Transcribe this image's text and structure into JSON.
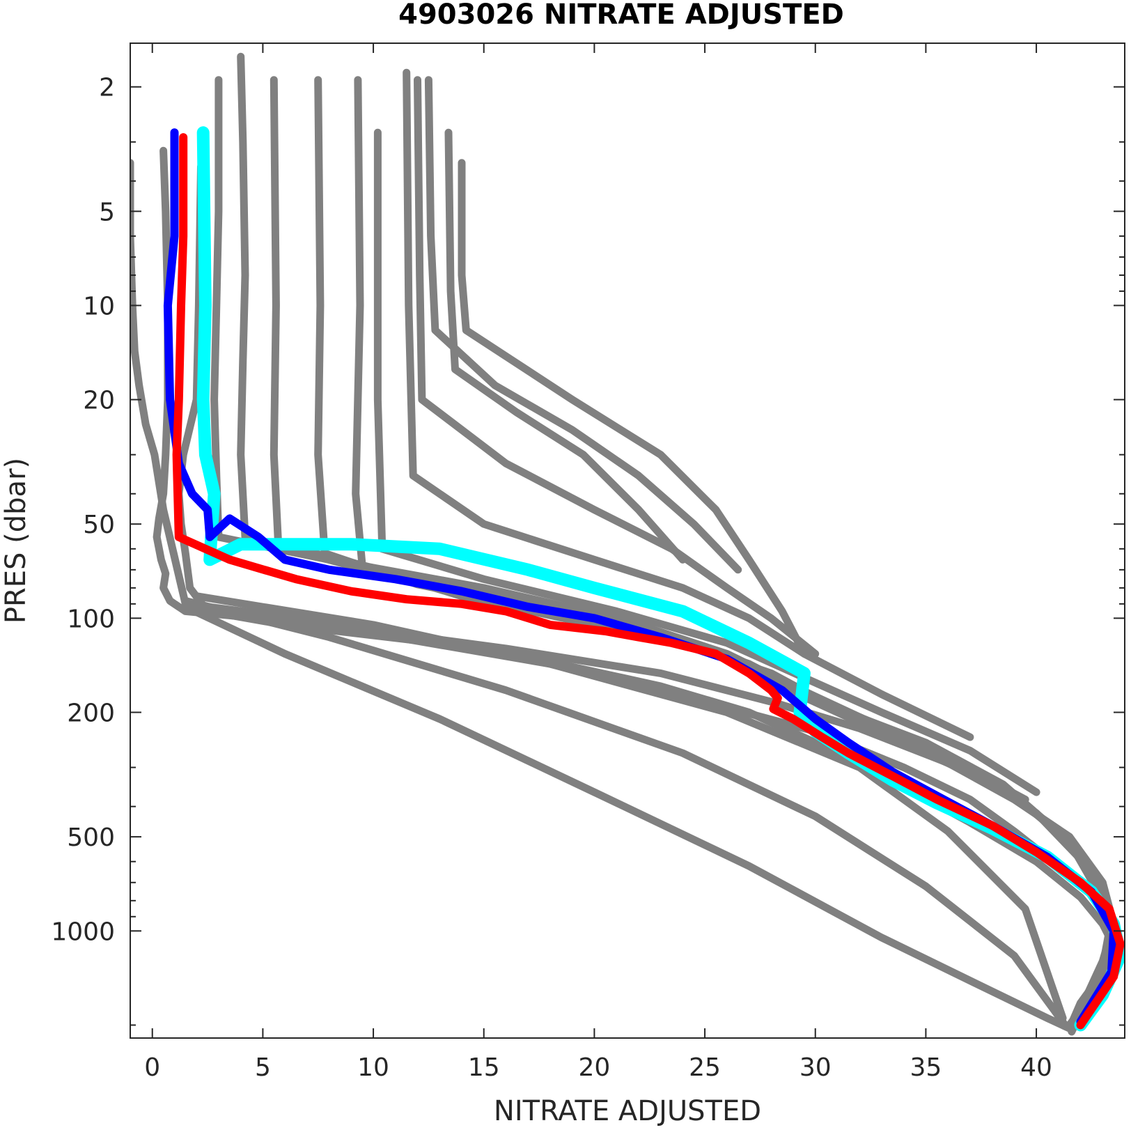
{
  "chart_data": {
    "type": "line",
    "title": "4903026  NITRATE ADJUSTED",
    "xlabel": "NITRATE ADJUSTED",
    "ylabel": "PRES (dbar)",
    "xlim": [
      -1,
      44
    ],
    "ylim": [
      1.45,
      2200
    ],
    "y_scale": "log",
    "y_reversed": true,
    "grid": false,
    "x_ticks": [
      0,
      5,
      10,
      15,
      20,
      25,
      30,
      35,
      40
    ],
    "x_tick_labels": [
      "0",
      "5",
      "10",
      "15",
      "20",
      "25",
      "30",
      "35",
      "40"
    ],
    "y_ticks": [
      2,
      5,
      10,
      20,
      50,
      100,
      200,
      500,
      1000
    ],
    "y_tick_labels": [
      "2",
      "5",
      "10",
      "20",
      "50",
      "100",
      "200",
      "500",
      "1000"
    ],
    "colors": {
      "background": "#ffffff",
      "axes": "#262626",
      "title": "#000000"
    },
    "series": [
      {
        "color": "#808080",
        "role": "all-profiles",
        "profiles": [
          {
            "x": [
              -1,
              -1,
              -0.9,
              -0.8,
              -0.6,
              -0.3,
              0.1,
              0.5,
              1.5,
              6.5,
              11,
              18,
              25,
              30,
              34,
              37,
              39,
              41,
              43,
              43.5,
              43.2,
              42,
              41.5
            ],
            "y": [
              3.5,
              6,
              10,
              14,
              18,
              24,
              30,
              45,
              90,
              100,
              115,
              140,
              185,
              230,
              300,
              380,
              480,
              620,
              800,
              1000,
              1300,
              1700,
              2050
            ]
          },
          {
            "x": [
              0.5,
              0.6,
              0.7,
              0.7,
              0.6,
              0.5,
              0.3,
              0.2,
              0.4,
              0.6,
              0.5,
              0.8,
              1.5,
              8,
              16,
              23,
              28,
              32,
              36,
              39,
              41.5,
              43,
              43.5,
              43,
              42.3,
              41.8
            ],
            "y": [
              3.2,
              5,
              10,
              20,
              30,
              40,
              48,
              55,
              65,
              72,
              80,
              88,
              95,
              105,
              125,
              150,
              185,
              225,
              290,
              380,
              500,
              700,
              950,
              1250,
              1600,
              2000
            ]
          },
          {
            "x": [
              3,
              3,
              2.9,
              2.8,
              2.9,
              3,
              8,
              15,
              21,
              25,
              28,
              31,
              35,
              38.5,
              41,
              42.8,
              43.3,
              43,
              42.2,
              41.6
            ],
            "y": [
              1.9,
              5,
              10,
              20,
              35,
              55,
              65,
              80,
              100,
              125,
              160,
              200,
              270,
              350,
              480,
              700,
              1000,
              1300,
              1700,
              2100
            ]
          },
          {
            "x": [
              4,
              4.1,
              4.2,
              4.1,
              4,
              4.2,
              9,
              16,
              22,
              26,
              29,
              32,
              36,
              39,
              41.5,
              42.8
            ],
            "y": [
              1.6,
              3,
              8,
              15,
              30,
              55,
              68,
              85,
              105,
              130,
              165,
              210,
              280,
              370,
              520,
              750
            ]
          },
          {
            "x": [
              5.5,
              5.6,
              5.5,
              5.7,
              11,
              17,
              23,
              27,
              30,
              33.5,
              37,
              40,
              42.3
            ],
            "y": [
              1.9,
              10,
              30,
              58,
              72,
              90,
              112,
              140,
              180,
              230,
              310,
              420,
              620
            ]
          },
          {
            "x": [
              7.5,
              7.6,
              7.5,
              7.8,
              12,
              18,
              24,
              28,
              31,
              35,
              38.5,
              41.5
            ],
            "y": [
              1.9,
              10,
              30,
              62,
              78,
              95,
              120,
              150,
              195,
              250,
              340,
              520
            ]
          },
          {
            "x": [
              9.3,
              9.4,
              9.2,
              9.5,
              14,
              20,
              25.5,
              29,
              32.5,
              36,
              39.5
            ],
            "y": [
              1.9,
              10,
              40,
              68,
              85,
              105,
              130,
              165,
              215,
              280,
              380
            ]
          },
          {
            "x": [
              10.2,
              10.2,
              10.4,
              15,
              21,
              26,
              29.5,
              33,
              37,
              40
            ],
            "y": [
              2.8,
              20,
              60,
              75,
              95,
              120,
              155,
              200,
              265,
              360
            ]
          },
          {
            "x": [
              11.5,
              11.6,
              11.8,
              15,
              20,
              24,
              27,
              29.5,
              33,
              37
            ],
            "y": [
              1.8,
              10,
              35,
              50,
              65,
              80,
              100,
              130,
              175,
              240
            ]
          },
          {
            "x": [
              12,
              12.1,
              12.2,
              16,
              20,
              23.5,
              26,
              28,
              30
            ],
            "y": [
              1.9,
              8,
              20,
              32,
              45,
              60,
              80,
              100,
              130
            ]
          },
          {
            "x": [
              12.5,
              12.6,
              12.8,
              15.5,
              19,
              22,
              24.5,
              26.5
            ],
            "y": [
              1.9,
              6,
              12,
              18,
              25,
              35,
              50,
              70
            ]
          },
          {
            "x": [
              13.4,
              13.5,
              13.7,
              16.5,
              19.5,
              22,
              24
            ],
            "y": [
              2.8,
              9,
              16,
              22,
              30,
              45,
              65
            ]
          },
          {
            "x": [
              14,
              14,
              14.2,
              19,
              23,
              25.5,
              27,
              28.5,
              29.5
            ],
            "y": [
              3.5,
              8,
              12,
              20,
              30,
              45,
              65,
              95,
              130
            ]
          },
          {
            "x": [
              2.2,
              2.1,
              2,
              1.4,
              1.2,
              1.3,
              1.5,
              1.7,
              2.5,
              6,
              12,
              18,
              23,
              27,
              30,
              33.5,
              37,
              40,
              42,
              43,
              43.6,
              42.8,
              41.5
            ],
            "y": [
              3.6,
              10,
              20,
              30,
              40,
              50,
              62,
              80,
              95,
              105,
              118,
              138,
              165,
              200,
              250,
              330,
              450,
              600,
              780,
              950,
              1150,
              1500,
              2000
            ]
          },
          {
            "x": [
              1.5,
              6,
              13,
              20,
              27,
              33,
              37.5,
              40.5,
              41.5
            ],
            "y": [
              92,
              130,
              210,
              360,
              620,
              1050,
              1500,
              1900,
              2050
            ]
          },
          {
            "x": [
              1.5,
              8,
              16,
              24,
              30,
              35,
              39,
              41.3
            ],
            "y": [
              88,
              115,
              170,
              270,
              430,
              720,
              1200,
              2000
            ]
          },
          {
            "x": [
              2,
              10,
              18,
              26,
              32,
              36,
              39.5,
              41.2
            ],
            "y": [
              85,
              105,
              140,
              200,
              300,
              480,
              850,
              1900
            ]
          }
        ]
      },
      {
        "color": "#00ffff",
        "role": "profile",
        "x": [
          2.3,
          2.4,
          2.3,
          2.4,
          2.8,
          2.6,
          4,
          9,
          13,
          17,
          20,
          24,
          27,
          29.5,
          29.3,
          30,
          31.5,
          33.5,
          35.5,
          38,
          40.5,
          42.5,
          43.5,
          43.8,
          43,
          42
        ],
        "y": [
          2.8,
          10,
          20,
          30,
          40,
          65,
          58,
          58,
          60,
          70,
          80,
          95,
          120,
          150,
          200,
          230,
          270,
          330,
          390,
          470,
          580,
          750,
          950,
          1200,
          1600,
          2000
        ]
      },
      {
        "color": "#0000ff",
        "role": "profile",
        "x": [
          1,
          1,
          0.7,
          0.8,
          1.2,
          1.8,
          2.5,
          2.6,
          3.5,
          4.8,
          6,
          8,
          11,
          14,
          17,
          20,
          23,
          26,
          28.5,
          30,
          31.5,
          33.5,
          35.5,
          38,
          40.5,
          42.5,
          43.5,
          43.4,
          42
        ],
        "y": [
          2.8,
          6,
          10,
          20,
          32,
          40,
          45,
          55,
          48,
          55,
          65,
          70,
          75,
          82,
          92,
          100,
          115,
          135,
          170,
          210,
          250,
          310,
          370,
          460,
          580,
          750,
          1000,
          1350,
          1950
        ]
      },
      {
        "color": "#ff0000",
        "role": "profile",
        "x": [
          1.4,
          1.4,
          1.3,
          1.2,
          1.1,
          1.2,
          3.5,
          6.5,
          9,
          11.5,
          14,
          16,
          18,
          20.5,
          22,
          23.5,
          25.5,
          27,
          28,
          28.3,
          28.1,
          29,
          30.3,
          31.5,
          33.5,
          35.5,
          38,
          40,
          42,
          43.3,
          43.8,
          43.5,
          42
        ],
        "y": [
          2.9,
          6,
          10,
          20,
          30,
          55,
          65,
          75,
          82,
          87,
          90,
          95,
          105,
          110,
          115,
          120,
          130,
          150,
          170,
          180,
          195,
          210,
          240,
          270,
          320,
          380,
          460,
          560,
          700,
          850,
          1100,
          1400,
          2000
        ]
      }
    ]
  }
}
